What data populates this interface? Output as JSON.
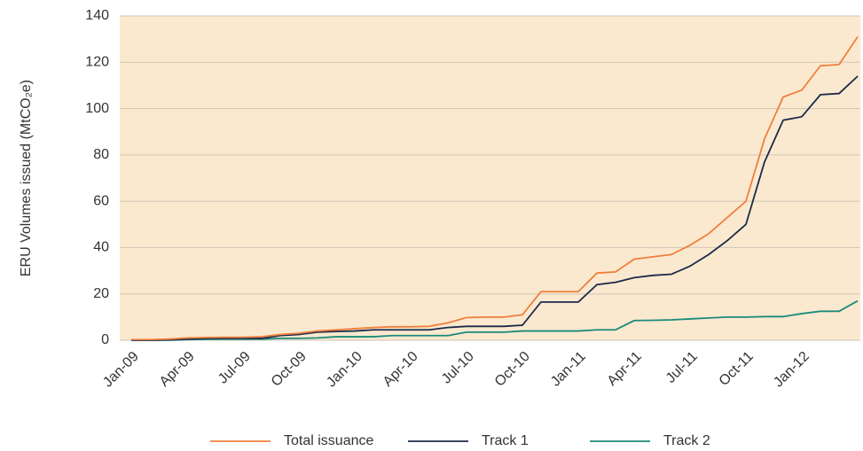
{
  "chart_data": {
    "type": "line",
    "y_label": "ERU Volumes issued (MtCO₂e)",
    "categories": [
      "Jan-09",
      null,
      null,
      "Apr-09",
      null,
      null,
      "Jul-09",
      null,
      null,
      "Oct-09",
      null,
      null,
      "Jan-10",
      null,
      null,
      "Apr-10",
      null,
      null,
      "Jul-10",
      null,
      null,
      "Oct-10",
      null,
      null,
      "Jan-11",
      null,
      null,
      "Apr-11",
      null,
      null,
      "Jul-11",
      null,
      null,
      "Oct-11",
      null,
      null,
      "Jan-12",
      null,
      null,
      null
    ],
    "series": [
      {
        "name": "Total issuance",
        "color": "#f07f3c",
        "values": [
          0.3,
          0.3,
          0.5,
          1,
          1.2,
          1.3,
          1.3,
          1.5,
          2.5,
          3,
          4,
          4.5,
          5,
          5.5,
          5.8,
          5.8,
          6,
          7.5,
          9.8,
          10,
          10,
          11,
          21,
          21,
          21,
          29,
          29.5,
          35,
          36,
          37,
          41,
          46,
          53,
          60,
          87,
          105,
          108,
          118.5,
          119,
          131
        ]
      },
      {
        "name": "Track 1",
        "color": "#1b2a4a",
        "values": [
          0,
          0,
          0.2,
          0.5,
          0.8,
          0.8,
          0.8,
          0.8,
          2,
          2.5,
          3.5,
          3.8,
          4,
          4.5,
          4.5,
          4.5,
          4.5,
          5.5,
          6,
          6,
          6,
          6.5,
          16.5,
          16.5,
          16.5,
          24,
          25,
          27,
          28,
          28.5,
          32,
          37,
          43,
          50,
          77,
          95,
          96.5,
          106,
          106.5,
          114
        ]
      },
      {
        "name": "Track 2",
        "color": "#1a8a7a",
        "values": [
          0,
          0,
          0,
          0.3,
          0.4,
          0.5,
          0.5,
          0.5,
          0.8,
          0.8,
          1,
          1.5,
          1.5,
          1.5,
          2,
          2,
          2,
          2,
          3.5,
          3.5,
          3.5,
          4,
          4,
          4,
          4,
          4.5,
          4.5,
          8.5,
          8.6,
          8.8,
          9.2,
          9.6,
          10,
          10,
          10.2,
          10.2,
          11.5,
          12.5,
          12.5,
          17
        ]
      }
    ],
    "ylim": [
      0,
      140
    ],
    "yticks": [
      0,
      20,
      40,
      60,
      80,
      100,
      120,
      140
    ],
    "grid": true,
    "background": "#fbe9cf",
    "legend": "bottom"
  }
}
